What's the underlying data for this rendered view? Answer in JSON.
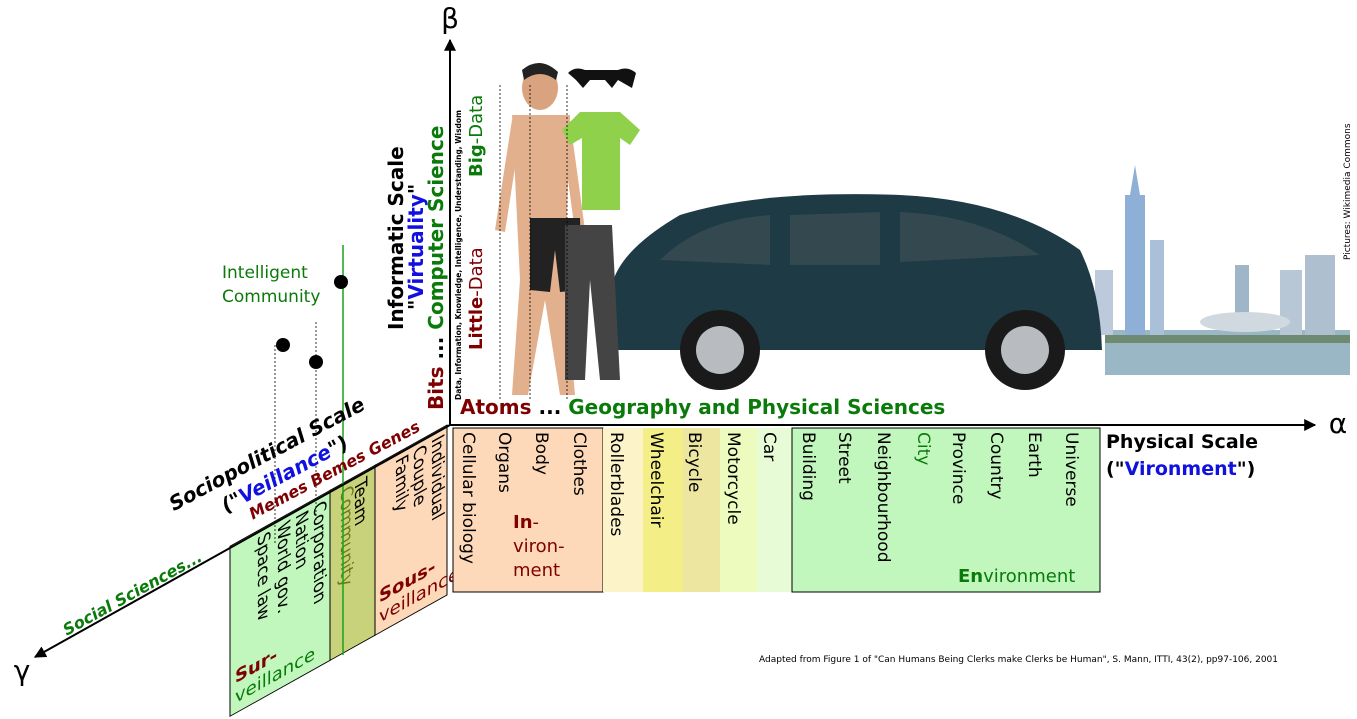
{
  "axes": {
    "beta": "β",
    "alpha": "α",
    "gamma": "γ"
  },
  "informatic": {
    "title": "Informatic Scale",
    "subtitle": [
      "\"",
      "Virtuality",
      "\""
    ],
    "range": [
      "Bits",
      " ... ",
      "Computer Science"
    ],
    "levels": "Data, Information, Knowledge, Intelligence, Understanding, Wisdom",
    "little_data": [
      "Little",
      "-Data"
    ],
    "big_data": [
      "Big",
      "-Data"
    ]
  },
  "physical": {
    "range": [
      "Atoms",
      " ... ",
      "Geography and Physical Sciences"
    ],
    "title": "Physical Scale",
    "subtitle": [
      "(\"",
      "Vironment",
      "\")"
    ],
    "items": [
      "Cellular biology",
      "Organs",
      "Body",
      "Clothes",
      "Rollerblades",
      "Wheelchair",
      "Bicycle",
      "Motorcycle",
      "Car",
      "Building",
      "Street",
      "Neighbourhood",
      "City",
      "Province",
      "Country",
      "Earth",
      "Universe"
    ],
    "invironment": [
      "In",
      "-",
      "viron-",
      "ment"
    ],
    "environment": [
      "En",
      "vironment"
    ]
  },
  "sociopolitical": {
    "title": "Sociopolitical Scale",
    "subtitle": [
      "(\"",
      "Veillance",
      "\")"
    ],
    "range": "Memes Bemes Genes",
    "sciences": "Social Sciences...",
    "intelligent_community": [
      "Intelligent",
      "Community"
    ],
    "groups": [
      [
        "Individual",
        "Couple",
        "Family"
      ],
      [
        "Team"
      ],
      [
        "Community"
      ],
      [
        "Corporation",
        "Nation",
        "World gov.",
        "Space law"
      ]
    ],
    "surveillance": [
      "Sur-",
      "veillance"
    ],
    "sousveillance": [
      "Sous-",
      "veillance"
    ]
  },
  "credits": {
    "pictures": "Pictures: Wikimedia Commons",
    "source": "Adapted from Figure 1 of \"Can Humans Being Clerks make Clerks be Human\", S. Mann, ITTI, 43(2), pp97-106, 2001"
  }
}
